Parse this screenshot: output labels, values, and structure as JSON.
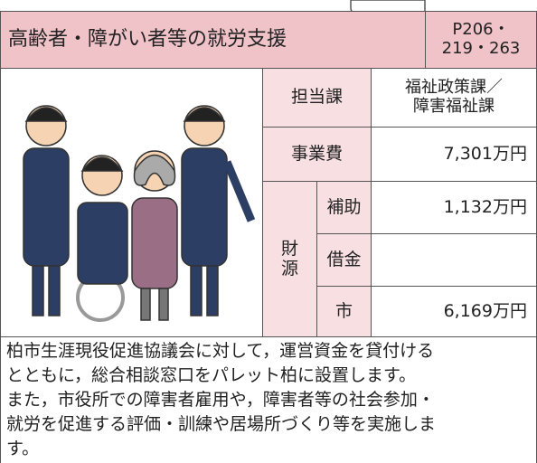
{
  "header": {
    "title": "高齢者・障がい者等の就労支援",
    "pages": [
      "P206・",
      "219・263"
    ]
  },
  "table": {
    "department": {
      "label": "担当課",
      "value": [
        "福祉政策課／",
        "障害福祉課"
      ]
    },
    "cost": {
      "label": "事業費",
      "value": "7,301万円"
    },
    "funding": {
      "label": [
        "財",
        "源"
      ],
      "rows": [
        {
          "label": "補助",
          "value": "1,132万円"
        },
        {
          "label": "借金"
        },
        {
          "label": "市",
          "value": "6,169万円"
        }
      ]
    }
  },
  "description": [
    "柏市生涯現役促進協議会に対して，運営資金を貸付ける",
    "とともに，総合相談窓口をパレット柏に設置します。",
    "また，市役所での障害者雇用や，障害者等の社会参加・",
    "就労を促進する評価・訓練や居場所づくり等を実施しま",
    "す。"
  ]
}
